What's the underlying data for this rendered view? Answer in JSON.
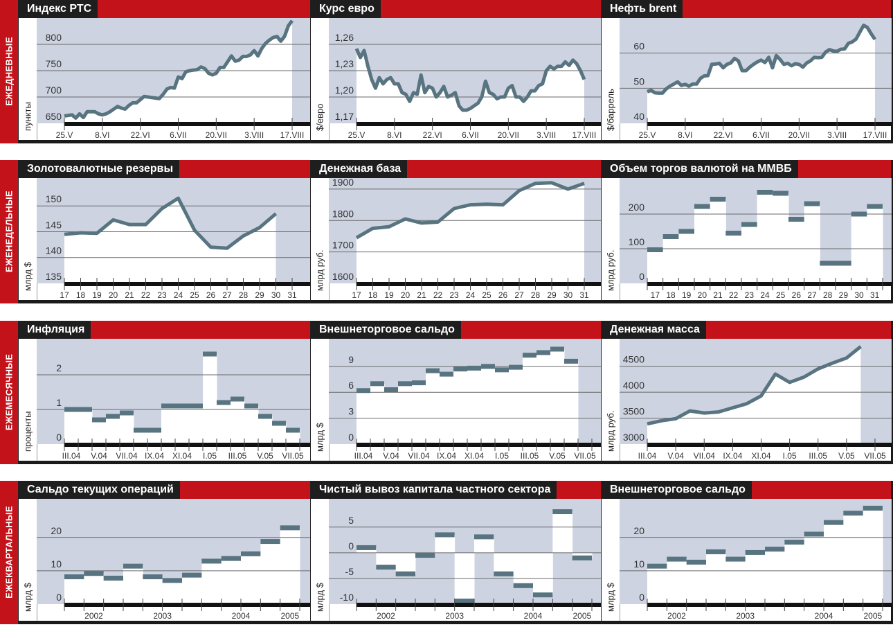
{
  "colors": {
    "red": "#c4121a",
    "black": "#1e1e1e",
    "plot_bg": "#cdd3e1",
    "line": "#587480",
    "grid": "#6a6a6a"
  },
  "rows": [
    {
      "label": "ЕЖЕДНЕВНЫЕ"
    },
    {
      "label": "ЕЖЕНЕДЕЛЬНЫЕ"
    },
    {
      "label": "ЕЖЕМЕСЯЧНЫЕ"
    },
    {
      "label": "ЕЖЕКВАРТАЛЬНЫЕ"
    }
  ],
  "chart_data": [
    {
      "type": "line",
      "title": "Индекс РТС",
      "ylabel": "пункты",
      "ylim": [
        650,
        850
      ],
      "n_slots": 61,
      "yticks": [
        {
          "value": 650,
          "label": "650"
        },
        {
          "value": 700,
          "label": "700"
        },
        {
          "value": 750,
          "label": "750"
        },
        {
          "value": 800,
          "label": "800"
        }
      ],
      "xlabels": [
        {
          "label": "25.V",
          "at": 0
        },
        {
          "label": "8.VI",
          "at": 10
        },
        {
          "label": "22.VI",
          "at": 20
        },
        {
          "label": "6.VII",
          "at": 30
        },
        {
          "label": "20.VII",
          "at": 40
        },
        {
          "label": "3.VIII",
          "at": 50
        },
        {
          "label": "17.VIII",
          "at": 60
        }
      ],
      "values": [
        664,
        665,
        666,
        660,
        668,
        661,
        672,
        672,
        672,
        668,
        666,
        668,
        672,
        677,
        682,
        679,
        677,
        684,
        689,
        689,
        695,
        701,
        700,
        699,
        698,
        697,
        705,
        715,
        718,
        717,
        738,
        735,
        748,
        750,
        751,
        752,
        757,
        754,
        745,
        742,
        745,
        756,
        756,
        767,
        778,
        768,
        770,
        777,
        777,
        780,
        788,
        778,
        792,
        802,
        808,
        813,
        815,
        806,
        815,
        835,
        845
      ]
    },
    {
      "type": "line",
      "title": "Курс евро",
      "ylabel": "$/евро",
      "ylim": [
        1.17,
        1.29
      ],
      "n_slots": 61,
      "yticks": [
        {
          "value": 1.17,
          "label": "1,17"
        },
        {
          "value": 1.2,
          "label": "1,20"
        },
        {
          "value": 1.23,
          "label": "1,23"
        },
        {
          "value": 1.26,
          "label": "1,26"
        }
      ],
      "xlabels": [
        {
          "label": "25.V",
          "at": 0
        },
        {
          "label": "8.VI",
          "at": 10
        },
        {
          "label": "22.VI",
          "at": 20
        },
        {
          "label": "6.VII",
          "at": 30
        },
        {
          "label": "20.VII",
          "at": 40
        },
        {
          "label": "3.VIII",
          "at": 50
        },
        {
          "label": "17.VIII",
          "at": 60
        }
      ],
      "values": [
        1.255,
        1.245,
        1.253,
        1.235,
        1.22,
        1.21,
        1.222,
        1.215,
        1.22,
        1.222,
        1.215,
        1.215,
        1.205,
        1.203,
        1.195,
        1.205,
        1.203,
        1.225,
        1.205,
        1.212,
        1.21,
        1.2,
        1.205,
        1.212,
        1.2,
        1.202,
        1.205,
        1.19,
        1.185,
        1.185,
        1.187,
        1.19,
        1.193,
        1.2,
        1.218,
        1.205,
        1.203,
        1.198,
        1.2,
        1.2,
        1.21,
        1.213,
        1.2,
        1.2,
        1.195,
        1.2,
        1.207,
        1.207,
        1.213,
        1.215,
        1.23,
        1.235,
        1.232,
        1.235,
        1.235,
        1.24,
        1.236,
        1.242,
        1.238,
        1.23,
        1.22
      ]
    },
    {
      "type": "line",
      "title": "Нефть brent",
      "ylabel": "$/баррель",
      "ylim": [
        40,
        70
      ],
      "n_slots": 61,
      "yticks": [
        {
          "value": 40,
          "label": "40"
        },
        {
          "value": 50,
          "label": "50"
        },
        {
          "value": 60,
          "label": "60"
        }
      ],
      "xlabels": [
        {
          "label": "25.V",
          "at": 0
        },
        {
          "label": "8.VI",
          "at": 10
        },
        {
          "label": "22.VI",
          "at": 20
        },
        {
          "label": "6.VII",
          "at": 30
        },
        {
          "label": "20.VII",
          "at": 40
        },
        {
          "label": "3.VIII",
          "at": 50
        },
        {
          "label": "17.VIII",
          "at": 60
        }
      ],
      "values": [
        49,
        49.4,
        48.7,
        48.6,
        48.6,
        49.8,
        50.6,
        51.2,
        51.8,
        50.8,
        51.1,
        50.6,
        51.2,
        51.2,
        52.8,
        53.5,
        53.6,
        56.8,
        56.9,
        57.1,
        55.8,
        56.8,
        57.2,
        58.5,
        57.8,
        55,
        55,
        56,
        56.8,
        57.5,
        58,
        57.3,
        58.8,
        55.8,
        59.3,
        58.2,
        56.8,
        57.1,
        56.4,
        57,
        56.8,
        56,
        57.2,
        57.8,
        58.8,
        58.7,
        58.8,
        60.3,
        61,
        60.6,
        60.5,
        61.1,
        61.2,
        62.8,
        63.2,
        64,
        66,
        67.9,
        67.3,
        65.5,
        63.9
      ]
    },
    {
      "type": "line",
      "title": "Золотовалютные резервы",
      "ylabel": "млрд $",
      "ylim": [
        135,
        155.4
      ],
      "n_slots": 15,
      "yticks": [
        {
          "value": 135,
          "label": "135"
        },
        {
          "value": 140,
          "label": "140"
        },
        {
          "value": 145,
          "label": "145"
        },
        {
          "value": 150,
          "label": "150"
        }
      ],
      "xlabels": [
        {
          "label": "17",
          "at": 0
        },
        {
          "label": "18",
          "at": 1
        },
        {
          "label": "19",
          "at": 2
        },
        {
          "label": "20",
          "at": 3
        },
        {
          "label": "21",
          "at": 4
        },
        {
          "label": "22",
          "at": 5
        },
        {
          "label": "23",
          "at": 6
        },
        {
          "label": "24",
          "at": 7
        },
        {
          "label": "25",
          "at": 8
        },
        {
          "label": "26",
          "at": 9
        },
        {
          "label": "27",
          "at": 10
        },
        {
          "label": "28",
          "at": 11
        },
        {
          "label": "29",
          "at": 12
        },
        {
          "label": "30",
          "at": 13
        },
        {
          "label": "31",
          "at": 14
        }
      ],
      "values": [
        144.5,
        144.8,
        144.7,
        147.3,
        146.4,
        146.4,
        149.5,
        151.5,
        145.3,
        142,
        141.8,
        144.2,
        145.8,
        148.5
      ]
    },
    {
      "type": "line",
      "title": "Денежная база",
      "ylabel": "млрд руб.",
      "ylim": [
        1600,
        1935
      ],
      "n_slots": 15,
      "yticks": [
        {
          "value": 1600,
          "label": "1600"
        },
        {
          "value": 1700,
          "label": "1700"
        },
        {
          "value": 1800,
          "label": "1800"
        },
        {
          "value": 1900,
          "label": "1900"
        }
      ],
      "xlabels": [
        {
          "label": "17",
          "at": 0
        },
        {
          "label": "18",
          "at": 1
        },
        {
          "label": "19",
          "at": 2
        },
        {
          "label": "20",
          "at": 3
        },
        {
          "label": "21",
          "at": 4
        },
        {
          "label": "22",
          "at": 5
        },
        {
          "label": "23",
          "at": 6
        },
        {
          "label": "24",
          "at": 7
        },
        {
          "label": "25",
          "at": 8
        },
        {
          "label": "26",
          "at": 9
        },
        {
          "label": "27",
          "at": 10
        },
        {
          "label": "28",
          "at": 11
        },
        {
          "label": "29",
          "at": 12
        },
        {
          "label": "30",
          "at": 13
        },
        {
          "label": "31",
          "at": 14
        }
      ],
      "values": [
        1745,
        1775,
        1780,
        1805,
        1792,
        1795,
        1838,
        1850,
        1852,
        1850,
        1895,
        1918,
        1920,
        1900,
        1918
      ]
    },
    {
      "type": "step",
      "title": "Объем торгов валютой на ММВБ",
      "ylabel": "млрд руб.",
      "ylim": [
        0,
        304
      ],
      "n_slots": 15,
      "yticks": [
        {
          "value": 0,
          "label": "0"
        },
        {
          "value": 100,
          "label": "100"
        },
        {
          "value": 200,
          "label": "200"
        }
      ],
      "xlabels": [
        {
          "label": "17",
          "at": 0
        },
        {
          "label": "18",
          "at": 1
        },
        {
          "label": "19",
          "at": 2
        },
        {
          "label": "20",
          "at": 3
        },
        {
          "label": "21",
          "at": 4
        },
        {
          "label": "22",
          "at": 5
        },
        {
          "label": "23",
          "at": 6
        },
        {
          "label": "24",
          "at": 7
        },
        {
          "label": "25",
          "at": 8
        },
        {
          "label": "26",
          "at": 9
        },
        {
          "label": "27",
          "at": 10
        },
        {
          "label": "28",
          "at": 11
        },
        {
          "label": "29",
          "at": 12
        },
        {
          "label": "30",
          "at": 13
        },
        {
          "label": "31",
          "at": 14
        }
      ],
      "values": [
        97,
        135,
        150,
        222,
        243,
        145,
        170,
        263,
        260,
        185,
        230,
        58,
        58,
        200,
        222
      ]
    },
    {
      "type": "step",
      "title": "Инфляция",
      "ylabel": "проценты",
      "ylim": [
        0,
        3.04
      ],
      "n_slots": 17,
      "yticks": [
        {
          "value": 0,
          "label": "0"
        },
        {
          "value": 1,
          "label": "1"
        },
        {
          "value": 2,
          "label": "2"
        }
      ],
      "xlabels": [
        {
          "label": "III.04",
          "at": 0
        },
        {
          "label": "V.04",
          "at": 2
        },
        {
          "label": "VII.04",
          "at": 4
        },
        {
          "label": "IX.04",
          "at": 6
        },
        {
          "label": "XI.04",
          "at": 8
        },
        {
          "label": "I.05",
          "at": 10
        },
        {
          "label": "III.05",
          "at": 12
        },
        {
          "label": "V.05",
          "at": 14
        },
        {
          "label": "VII.05",
          "at": 16
        }
      ],
      "values": [
        1.0,
        1.0,
        0.7,
        0.8,
        0.9,
        0.4,
        0.4,
        1.1,
        1.1,
        1.1,
        2.6,
        1.2,
        1.3,
        1.1,
        0.8,
        0.6,
        0.4
      ]
    },
    {
      "type": "step",
      "title": "Внешнеторговое сальдо",
      "ylabel": "млрд $",
      "ylim": [
        0,
        12.2
      ],
      "n_slots": 17,
      "yticks": [
        {
          "value": 0,
          "label": "0"
        },
        {
          "value": 3,
          "label": "3"
        },
        {
          "value": 6,
          "label": "6"
        },
        {
          "value": 9,
          "label": "9"
        }
      ],
      "xlabels": [
        {
          "label": "III.04",
          "at": 0
        },
        {
          "label": "V.04",
          "at": 2
        },
        {
          "label": "VII.04",
          "at": 4
        },
        {
          "label": "IX.04",
          "at": 6
        },
        {
          "label": "XI.04",
          "at": 8
        },
        {
          "label": "I.05",
          "at": 10
        },
        {
          "label": "III.05",
          "at": 12
        },
        {
          "label": "V.05",
          "at": 14
        },
        {
          "label": "VII.05",
          "at": 16
        }
      ],
      "values": [
        6.2,
        7.0,
        6.3,
        7.0,
        7.1,
        8.5,
        8.1,
        8.7,
        8.8,
        9.0,
        8.6,
        8.9,
        10.3,
        10.6,
        11.0,
        9.6
      ]
    },
    {
      "type": "line",
      "title": "Денежная масса",
      "ylabel": "млрд руб.",
      "ylim": [
        3000,
        5030
      ],
      "n_slots": 17,
      "yticks": [
        {
          "value": 3000,
          "label": "3000"
        },
        {
          "value": 3500,
          "label": "3500"
        },
        {
          "value": 4000,
          "label": "4000"
        },
        {
          "value": 4500,
          "label": "4500"
        }
      ],
      "xlabels": [
        {
          "label": "III.04",
          "at": 0
        },
        {
          "label": "V.04",
          "at": 2
        },
        {
          "label": "VII.04",
          "at": 4
        },
        {
          "label": "IX.04",
          "at": 6
        },
        {
          "label": "XI.04",
          "at": 8
        },
        {
          "label": "I.05",
          "at": 10
        },
        {
          "label": "III.05",
          "at": 12
        },
        {
          "label": "V.05",
          "at": 14
        },
        {
          "label": "VII.05",
          "at": 16
        }
      ],
      "values": [
        3390,
        3450,
        3490,
        3640,
        3600,
        3620,
        3700,
        3780,
        3930,
        4350,
        4190,
        4290,
        4450,
        4560,
        4660,
        4880
      ]
    },
    {
      "type": "step",
      "title": "Сальдо текущих операций",
      "ylabel": "млрд $",
      "ylim": [
        0,
        31.6
      ],
      "n_slots": 12,
      "yticks": [
        {
          "value": 0,
          "label": "0"
        },
        {
          "value": 10,
          "label": "10"
        },
        {
          "value": 20,
          "label": "20"
        }
      ],
      "xlabels": [
        {
          "label": "2002",
          "span": [
            0,
            2
          ]
        },
        {
          "label": "2003",
          "span": [
            3,
            6
          ]
        },
        {
          "label": "2004",
          "span": [
            7,
            10
          ]
        },
        {
          "label": "2005",
          "span": [
            11,
            11
          ]
        }
      ],
      "values": [
        8.2,
        9.2,
        7.8,
        11.4,
        8.2,
        7.1,
        8.7,
        12.9,
        13.7,
        15.1,
        18.8,
        22.9
      ]
    },
    {
      "type": "step",
      "title": "Чистый вывоз капитала частного сектора",
      "ylabel": "млрд $",
      "ylim": [
        -10,
        10.5
      ],
      "n_slots": 12,
      "yticks": [
        {
          "value": -10,
          "label": "-10"
        },
        {
          "value": -5,
          "label": "-5"
        },
        {
          "value": 0,
          "label": "0"
        },
        {
          "value": 5,
          "label": "5"
        }
      ],
      "xlabels": [
        {
          "label": "2002",
          "span": [
            0,
            2
          ]
        },
        {
          "label": "2003",
          "span": [
            3,
            6
          ]
        },
        {
          "label": "2004",
          "span": [
            7,
            10
          ]
        },
        {
          "label": "2005",
          "span": [
            11,
            11
          ]
        }
      ],
      "values": [
        1,
        -2.8,
        -4.1,
        -0.5,
        3.5,
        -9.4,
        3.1,
        -4.1,
        -6.4,
        -8.2,
        8.0,
        -1.0
      ]
    },
    {
      "type": "step",
      "title": "Внешнеторговое сальдо",
      "ylabel": "млрд $",
      "ylim": [
        0,
        31.6
      ],
      "n_slots": 12,
      "yticks": [
        {
          "value": 0,
          "label": "0"
        },
        {
          "value": 10,
          "label": "10"
        },
        {
          "value": 20,
          "label": "20"
        }
      ],
      "xlabels": [
        {
          "label": "2002",
          "span": [
            0,
            2
          ]
        },
        {
          "label": "2003",
          "span": [
            3,
            6
          ]
        },
        {
          "label": "2004",
          "span": [
            7,
            10
          ]
        },
        {
          "label": "2005",
          "span": [
            11,
            11
          ]
        }
      ],
      "values": [
        11.4,
        13.5,
        12.6,
        15.7,
        13.5,
        15.5,
        16.5,
        18.6,
        21,
        24.5,
        27.3,
        28.8
      ]
    }
  ]
}
